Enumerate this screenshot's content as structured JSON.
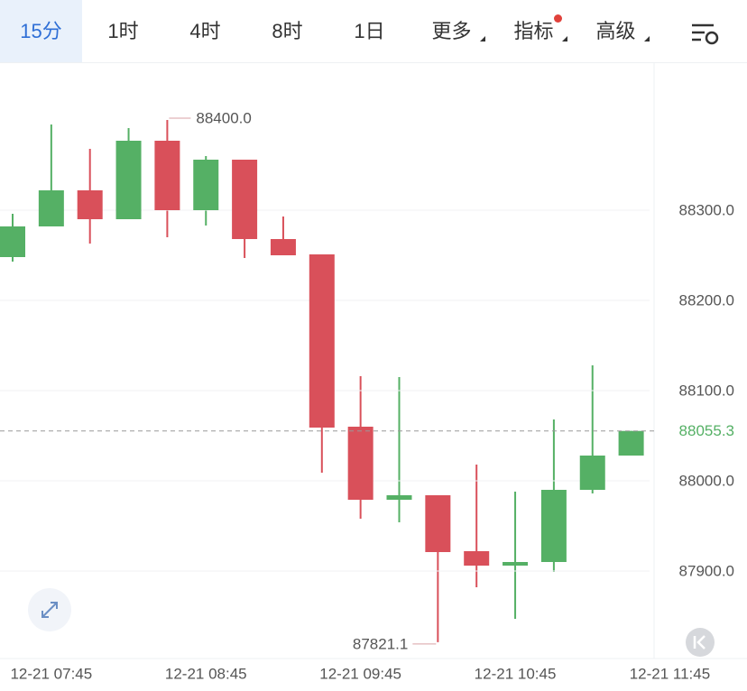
{
  "toolbar": {
    "tabs": [
      "15分",
      "1时",
      "4时",
      "8时",
      "1日",
      "更多",
      "指标",
      "高级"
    ]
  },
  "chart_data": {
    "type": "candlestick",
    "categories": [
      null,
      "12-21 07:45",
      null,
      null,
      null,
      "12-21 08:45",
      null,
      null,
      null,
      "12-21 09:45",
      null,
      null,
      null,
      "12-21 10:45",
      null,
      null,
      null,
      "12-21 11:45"
    ],
    "open": [
      88248,
      88282,
      88322,
      88290,
      88377,
      88300,
      88356,
      88268,
      88251,
      88060,
      87979,
      87984,
      87922,
      87906,
      87910,
      87990,
      88028,
      null
    ],
    "high": [
      88296,
      88395,
      88368,
      88391,
      88400,
      88360,
      88356,
      88293,
      88251,
      88116,
      88115,
      87984,
      88018,
      87988,
      88068,
      88128,
      88055.3,
      null
    ],
    "low": [
      88243,
      88282,
      88263,
      88290,
      88270,
      88283,
      88247,
      88250,
      88009,
      87958,
      87954,
      87821.1,
      87882,
      87847,
      87899,
      87986,
      88028,
      null
    ],
    "close": [
      88282,
      88322,
      88290,
      88377,
      88300,
      88356,
      88268,
      88250,
      88059,
      87979,
      87984,
      87921,
      87906,
      87910,
      87990,
      88028,
      88055.3,
      null
    ],
    "up_color": "#55b065",
    "down_color": "#d9505a",
    "ylim": [
      87803,
      88463
    ],
    "yticks": [
      {
        "value": 87900,
        "label": "87900.0"
      },
      {
        "value": 88000,
        "label": "88000.0"
      },
      {
        "value": 88100,
        "label": "88100.0"
      },
      {
        "value": 88200,
        "label": "88200.0"
      },
      {
        "value": 88300,
        "label": "88300.0"
      }
    ],
    "grid": true,
    "last_price": {
      "value": 88055.3,
      "label": "88055.3"
    },
    "annotations": [
      {
        "value": 88400,
        "label": "88400.0"
      },
      {
        "value": 87821.1,
        "label": "87821.1"
      }
    ]
  }
}
